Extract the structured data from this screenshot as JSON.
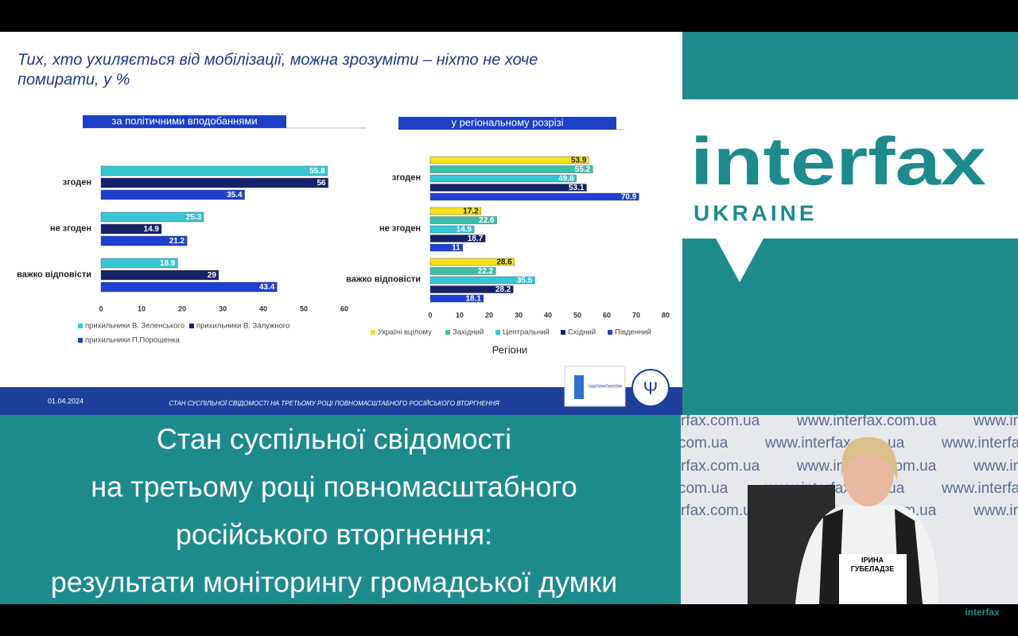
{
  "slide": {
    "title_lines": [
      "Тих, хто ухиляється від мобілізації, можна зрозуміти – ніхто не хоче",
      "помирати, у %"
    ],
    "date": "01.04.2024",
    "footer": "СТАН СУСПІЛЬНОЇ СВІДОМОСТІ НА ТРЕТЬОМУ РОЦІ ПОВНОМАСШТАБНОГО РОСІЙСЬКОГО ВТОРГНЕННЯ",
    "logo_text": "Асоціація Політичних Психологів України"
  },
  "chart_data": [
    {
      "type": "bar",
      "orientation": "horizontal",
      "subtitle": "за політичними вподобаннями",
      "categories": [
        "згоден",
        "не згоден",
        "важко відповісти"
      ],
      "series": [
        {
          "name": "прихильники В. Зеленського",
          "color": "#38c6d2",
          "values": [
            55.8,
            25.3,
            18.9
          ]
        },
        {
          "name": "прихильники В. Залужного",
          "color": "#15226a",
          "values": [
            56,
            14.9,
            29
          ]
        },
        {
          "name": "прихильники П.Порошенка",
          "color": "#1f3fd0",
          "values": [
            35.4,
            21.2,
            43.4
          ]
        }
      ],
      "xlim": [
        0,
        60
      ],
      "xticks": [
        0,
        10,
        20,
        30,
        40,
        50,
        60
      ],
      "grid": false,
      "legend": "bottom"
    },
    {
      "type": "bar",
      "orientation": "horizontal",
      "subtitle": "у регіональному розрізі",
      "xlabel": "Регіони",
      "categories": [
        "згоден",
        "не згоден",
        "важко відповісти"
      ],
      "series": [
        {
          "name": "Україні вцілому",
          "color": "#f4e41c",
          "values": [
            53.9,
            17.2,
            28.6
          ]
        },
        {
          "name": "Західний",
          "color": "#3cbfa5",
          "values": [
            55.2,
            22.6,
            22.2
          ]
        },
        {
          "name": "Центральний",
          "color": "#33c7d8",
          "values": [
            49.6,
            14.9,
            35.5
          ]
        },
        {
          "name": "Східний",
          "color": "#15226a",
          "values": [
            53.1,
            18.7,
            28.2
          ]
        },
        {
          "name": "Південний",
          "color": "#1f3fd6",
          "values": [
            70.9,
            11,
            18.1
          ]
        }
      ],
      "xlim": [
        0,
        80
      ],
      "xticks": [
        0,
        10,
        20,
        30,
        40,
        50,
        60,
        70,
        80
      ],
      "grid": false,
      "legend": "bottom"
    }
  ],
  "banner": {
    "lines": [
      "Стан суспільної свідомості",
      "на третьому році повномасштабного",
      "російського вторгнення:",
      "результати моніторингу громадської думки"
    ]
  },
  "brand": {
    "name": "interfax",
    "region": "UKRAINE",
    "website": "www.interfax.com.ua"
  },
  "speaker": {
    "first_name": "ІРИНА",
    "last_name": "ГУБЕЛАДЗЕ"
  }
}
